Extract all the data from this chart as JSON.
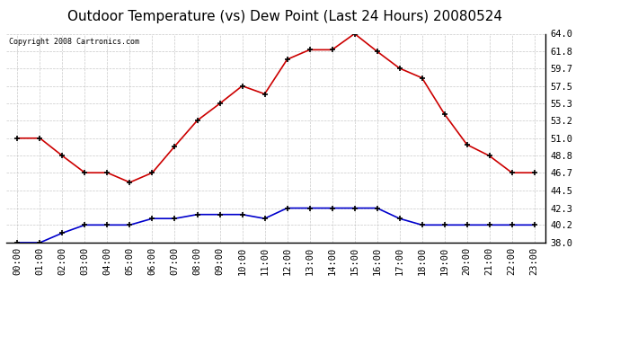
{
  "title": "Outdoor Temperature (vs) Dew Point (Last 24 Hours) 20080524",
  "copyright_text": "Copyright 2008 Cartronics.com",
  "hours": [
    "00:00",
    "01:00",
    "02:00",
    "03:00",
    "04:00",
    "05:00",
    "06:00",
    "07:00",
    "08:00",
    "09:00",
    "10:00",
    "11:00",
    "12:00",
    "13:00",
    "14:00",
    "15:00",
    "16:00",
    "17:00",
    "18:00",
    "19:00",
    "20:00",
    "21:00",
    "22:00",
    "23:00"
  ],
  "temp": [
    51.0,
    51.0,
    48.8,
    46.7,
    46.7,
    45.5,
    46.7,
    50.0,
    53.2,
    55.3,
    57.5,
    56.5,
    60.8,
    62.0,
    62.0,
    64.0,
    61.8,
    59.7,
    58.5,
    54.0,
    50.2,
    48.8,
    46.7,
    46.7
  ],
  "dew": [
    38.0,
    38.0,
    39.2,
    40.2,
    40.2,
    40.2,
    41.0,
    41.0,
    41.5,
    41.5,
    41.5,
    41.0,
    42.3,
    42.3,
    42.3,
    42.3,
    42.3,
    41.0,
    40.2,
    40.2,
    40.2,
    40.2,
    40.2,
    40.2
  ],
  "temp_color": "#cc0000",
  "dew_color": "#0000cc",
  "bg_color": "#ffffff",
  "grid_color": "#bbbbbb",
  "ylim": [
    38.0,
    64.0
  ],
  "yticks": [
    38.0,
    40.2,
    42.3,
    44.5,
    46.7,
    48.8,
    51.0,
    53.2,
    55.3,
    57.5,
    59.7,
    61.8,
    64.0
  ],
  "title_fontsize": 11,
  "copyright_fontsize": 6,
  "tick_fontsize": 7.5
}
